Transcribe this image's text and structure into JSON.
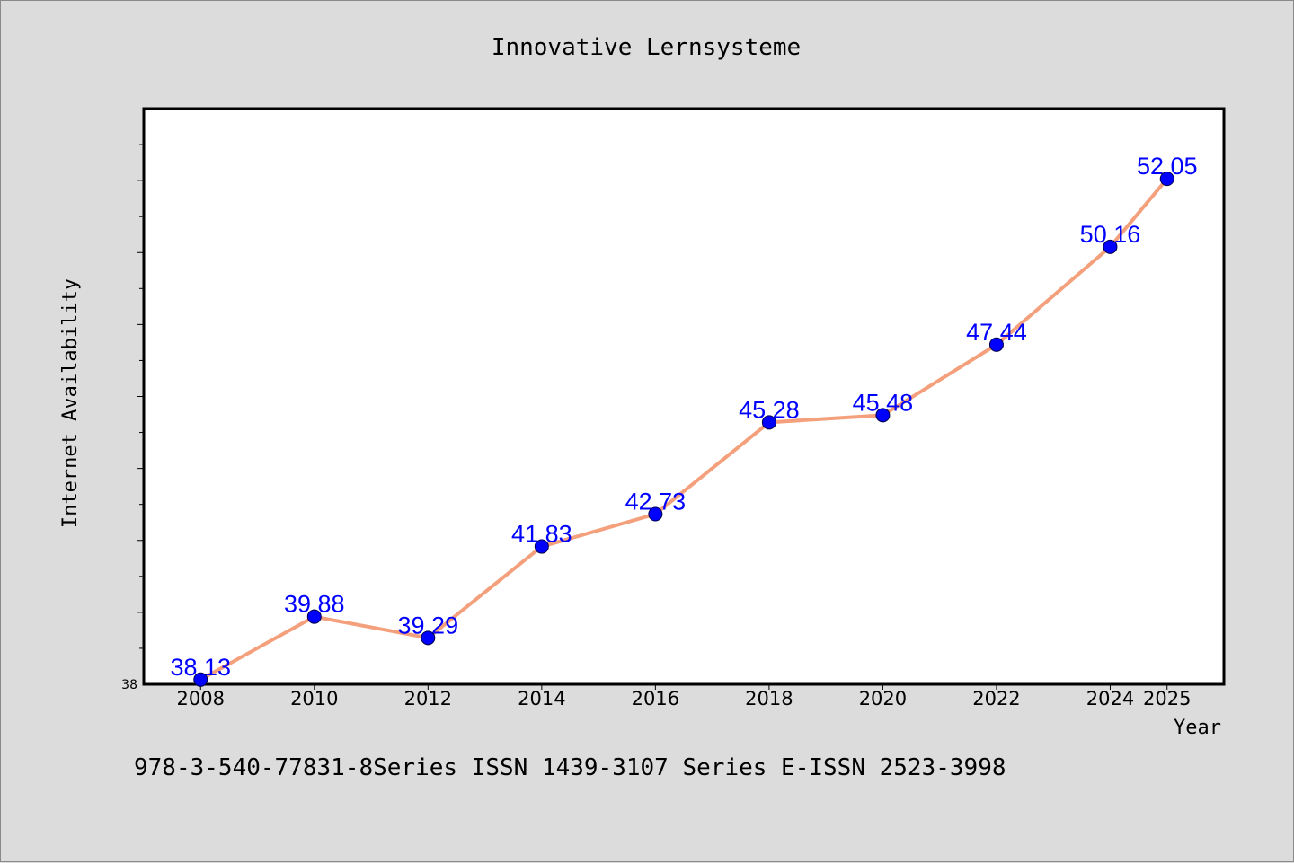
{
  "chart_data": {
    "type": "line",
    "title": "Innovative Lernsysteme",
    "xlabel": "Year",
    "ylabel": "Internet Availability",
    "x": [
      "2008",
      "2010",
      "2012",
      "2014",
      "2016",
      "2018",
      "2020",
      "2022",
      "2024",
      "2025"
    ],
    "values": [
      38.13,
      39.88,
      39.29,
      41.83,
      42.73,
      45.28,
      45.48,
      47.44,
      50.16,
      52.05
    ],
    "data_labels": [
      "38.13",
      "39.88",
      "39.29",
      "41.83",
      "42.73",
      "45.28",
      "45.48",
      "47.44",
      "50.16",
      "52.05"
    ],
    "ylim": [
      38,
      54
    ],
    "ytick_labels": [
      "38"
    ],
    "grid": false,
    "legend": "none",
    "line_color": "#f4a07c",
    "marker_color": "#0000ff",
    "label_color": "#0000ff"
  },
  "footer": {
    "text": "978-3-540-77831-8Series ISSN 1439-3107 Series E-ISSN 2523-3998"
  }
}
